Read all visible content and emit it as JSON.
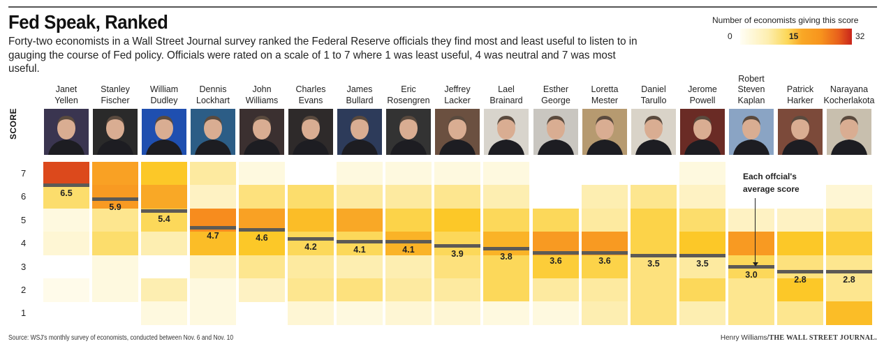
{
  "header": {
    "title": "Fed Speak, Ranked",
    "subtitle": "Forty-two economists in a Wall Street Journal survey ranked the Federal Reserve officials they find most and least useful to listen to in gauging the course of Fed policy. Officials were rated on a scale of 1 to 7 where 1 was least useful, 4 was neutral and 7 was most useful."
  },
  "legend": {
    "title": "Number of economists giving this score",
    "min_label": "0",
    "mid_label": "15",
    "max_label": "32",
    "colors": [
      "#fffef5",
      "#fdeeb0",
      "#fcd85a",
      "#f9a826",
      "#f7941d",
      "#e8601c",
      "#c8251b"
    ]
  },
  "annotation": {
    "line1": "Each offcial's",
    "line2": "average score"
  },
  "footer": {
    "source": "Source: WSJ's monthly survey of economists, conducted between Nov. 6 and Nov. 10",
    "credit_author": "Henry Williams/",
    "credit_pub": "THE WALL STREET JOURNAL."
  },
  "chart_data": {
    "type": "heatmap",
    "title": "Fed Speak, Ranked",
    "ylabel": "SCORE",
    "y_ticks": [
      "7",
      "6",
      "5",
      "4",
      "3",
      "2",
      "1"
    ],
    "ylim": [
      1,
      7
    ],
    "color_scale": {
      "min": 0,
      "mid": 15,
      "max": 32,
      "label": "Number of economists giving this score"
    },
    "officials": [
      {
        "first": "Janet",
        "last": "Yellen",
        "avg": 6.5,
        "avg_label": "6.5",
        "counts": {
          "7": 28,
          "6": 9,
          "5": 2,
          "4": 3,
          "3": 0,
          "2": 1,
          "1": 0
        }
      },
      {
        "first": "Stanley",
        "last": "Fischer",
        "avg": 5.9,
        "avg_label": "5.9",
        "counts": {
          "7": 17,
          "6": 18,
          "5": 7,
          "4": 9,
          "3": 2,
          "2": 2,
          "1": 0
        }
      },
      {
        "first": "William",
        "last": "Dudley",
        "avg": 5.4,
        "avg_label": "5.4",
        "counts": {
          "7": 13,
          "6": 16,
          "5": 10,
          "4": 5,
          "3": 0,
          "2": 5,
          "1": 2
        }
      },
      {
        "first": "Dennis",
        "last": "Lockhart",
        "avg": 4.7,
        "avg_label": "4.7",
        "counts": {
          "7": 6,
          "6": 4,
          "5": 20,
          "4": 14,
          "3": 4,
          "2": 2,
          "1": 2
        }
      },
      {
        "first": "John",
        "last": "Williams",
        "avg": 4.6,
        "avg_label": "4.6",
        "counts": {
          "7": 2,
          "6": 8,
          "5": 17,
          "4": 13,
          "3": 7,
          "2": 4,
          "1": 0
        }
      },
      {
        "first": "Charles",
        "last": "Evans",
        "avg": 4.2,
        "avg_label": "4.2",
        "counts": {
          "7": 0,
          "6": 9,
          "5": 14,
          "4": 10,
          "3": 6,
          "2": 7,
          "1": 3
        }
      },
      {
        "first": "James",
        "last": "Bullard",
        "avg": 4.1,
        "avg_label": "4.1",
        "counts": {
          "7": 2,
          "6": 6,
          "5": 16,
          "4": 10,
          "3": 5,
          "2": 8,
          "1": 2
        }
      },
      {
        "first": "Eric",
        "last": "Rosengren",
        "avg": 4.1,
        "avg_label": "4.1",
        "counts": {
          "7": 2,
          "6": 6,
          "5": 11,
          "4": 15,
          "3": 5,
          "2": 6,
          "1": 3
        }
      },
      {
        "first": "Jeffrey",
        "last": "Lacker",
        "avg": 3.9,
        "avg_label": "3.9",
        "counts": {
          "7": 2,
          "6": 7,
          "5": 13,
          "4": 10,
          "3": 8,
          "2": 6,
          "1": 3
        }
      },
      {
        "first": "Lael",
        "last": "Brainard",
        "avg": 3.8,
        "avg_label": "3.8",
        "counts": {
          "7": 2,
          "6": 5,
          "5": 10,
          "4": 15,
          "3": 10,
          "2": 10,
          "1": 2
        }
      },
      {
        "first": "Esther",
        "last": "George",
        "avg": 3.6,
        "avg_label": "3.6",
        "counts": {
          "7": 0,
          "6": 0,
          "5": 10,
          "4": 18,
          "3": 12,
          "2": 6,
          "1": 2
        }
      },
      {
        "first": "Loretta",
        "last": "Mester",
        "avg": 3.6,
        "avg_label": "3.6",
        "counts": {
          "7": 0,
          "6": 5,
          "5": 6,
          "4": 18,
          "3": 11,
          "2": 6,
          "1": 5
        }
      },
      {
        "first": "Daniel",
        "last": "Tarullo",
        "avg": 3.5,
        "avg_label": "3.5",
        "counts": {
          "7": 0,
          "6": 7,
          "5": 11,
          "4": 11,
          "3": 8,
          "2": 8,
          "1": 8
        }
      },
      {
        "first": "Jerome",
        "last": "Powell",
        "avg": 3.5,
        "avg_label": "3.5",
        "counts": {
          "7": 2,
          "6": 4,
          "5": 9,
          "4": 13,
          "3": 6,
          "2": 10,
          "1": 5
        }
      },
      {
        "first": "Robert Steven",
        "last": "Kaplan",
        "avg": 3.0,
        "avg_label": "3.0",
        "counts": {
          "7": 0,
          "6": 0,
          "5": 4,
          "4": 18,
          "3": 10,
          "2": 7,
          "1": 7
        }
      },
      {
        "first": "Patrick",
        "last": "Harker",
        "avg": 2.8,
        "avg_label": "2.8",
        "counts": {
          "7": 0,
          "6": 0,
          "5": 4,
          "4": 13,
          "3": 8,
          "2": 13,
          "1": 7
        }
      },
      {
        "first": "Narayana",
        "last": "Kocherlakota",
        "avg": 2.8,
        "avg_label": "2.8",
        "counts": {
          "7": 0,
          "6": 3,
          "5": 7,
          "4": 12,
          "3": 7,
          "2": 7,
          "1": 14
        }
      }
    ]
  }
}
